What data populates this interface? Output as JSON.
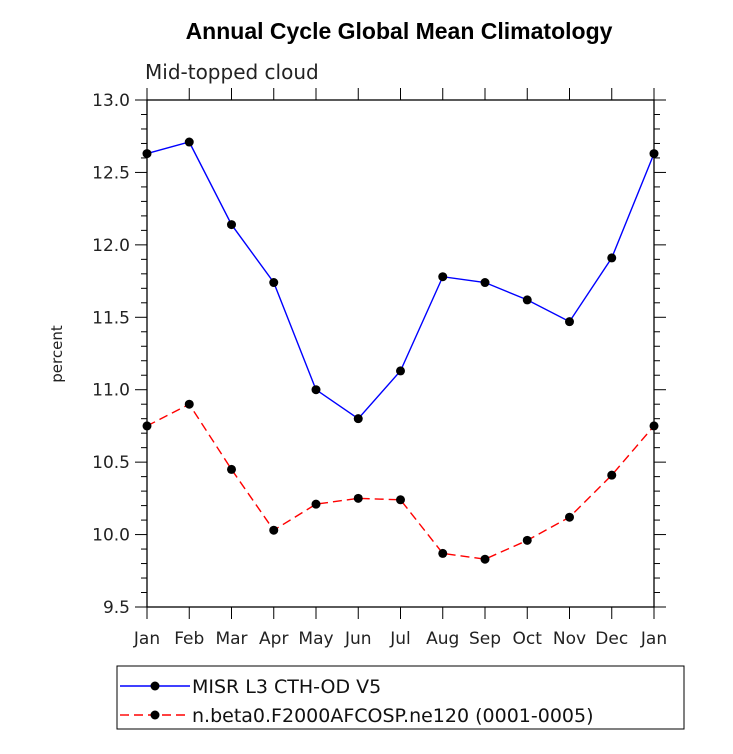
{
  "chart_data": {
    "type": "line",
    "title": "Annual Cycle Global Mean Climatology",
    "subtitle": "Mid-topped cloud",
    "xlabel": "",
    "ylabel": "percent",
    "categories": [
      "Jan",
      "Feb",
      "Mar",
      "Apr",
      "May",
      "Jun",
      "Jul",
      "Aug",
      "Sep",
      "Oct",
      "Nov",
      "Dec",
      "Jan"
    ],
    "ylim": [
      9.5,
      13.0
    ],
    "yticks": [
      "9.5",
      "10.0",
      "10.5",
      "11.0",
      "11.5",
      "12.0",
      "12.5",
      "13.0"
    ],
    "legend_position": "bottom",
    "series": [
      {
        "name": "MISR L3 CTH-OD V5",
        "color": "#0000ff",
        "dash": "solid",
        "values": [
          12.63,
          12.71,
          12.14,
          11.74,
          11.0,
          10.8,
          11.13,
          11.78,
          11.74,
          11.62,
          11.47,
          11.91,
          12.63
        ]
      },
      {
        "name": "n.beta0.F2000AFCOSP.ne120 (0001-0005)",
        "color": "#ff0000",
        "dash": "dashed",
        "values": [
          10.75,
          10.9,
          10.45,
          10.03,
          10.21,
          10.25,
          10.24,
          9.87,
          9.83,
          9.96,
          10.12,
          10.41,
          10.75
        ]
      }
    ]
  }
}
